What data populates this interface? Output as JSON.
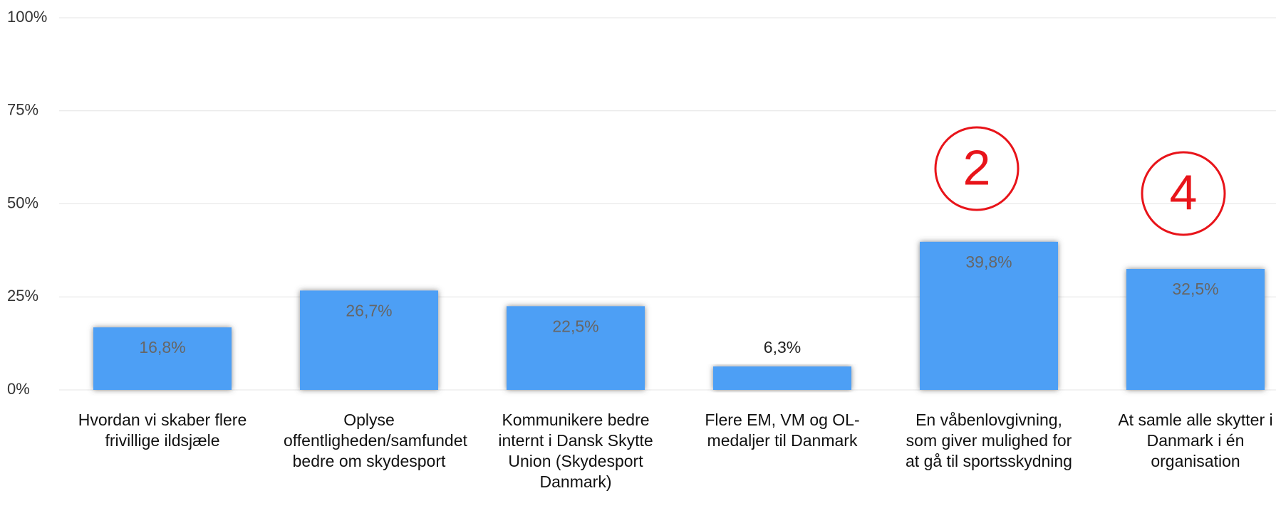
{
  "chart_data": {
    "type": "bar",
    "categories": [
      "Hvordan vi skaber flere frivillige ildsjæle",
      "Oplyse offentligheden/samfundet bedre om skydesport",
      "Kommunikere bedre internt i Dansk Skytte Union (Skydesport Danmark)",
      "Flere EM, VM og OL-medaljer til Danmark",
      "En våbenlovgivning, som giver mulighed for at gå til sportsskydning",
      "At samle alle skytter i Danmark i én organisation"
    ],
    "values": [
      16.8,
      26.7,
      22.5,
      6.3,
      39.8,
      32.5
    ],
    "value_labels": [
      "16,8%",
      "26,7%",
      "22,5%",
      "6,3%",
      "39,8%",
      "32,5%"
    ],
    "color": "#4d9ff5",
    "ylim": [
      0,
      100
    ],
    "yticks": [
      {
        "value": 0,
        "label": "0%"
      },
      {
        "value": 25,
        "label": "25%"
      },
      {
        "value": 50,
        "label": "50%"
      },
      {
        "value": 75,
        "label": "75%"
      },
      {
        "value": 100,
        "label": "100%"
      }
    ],
    "grid": true,
    "annotations": [
      {
        "text": "2"
      },
      {
        "text": "4"
      }
    ]
  }
}
